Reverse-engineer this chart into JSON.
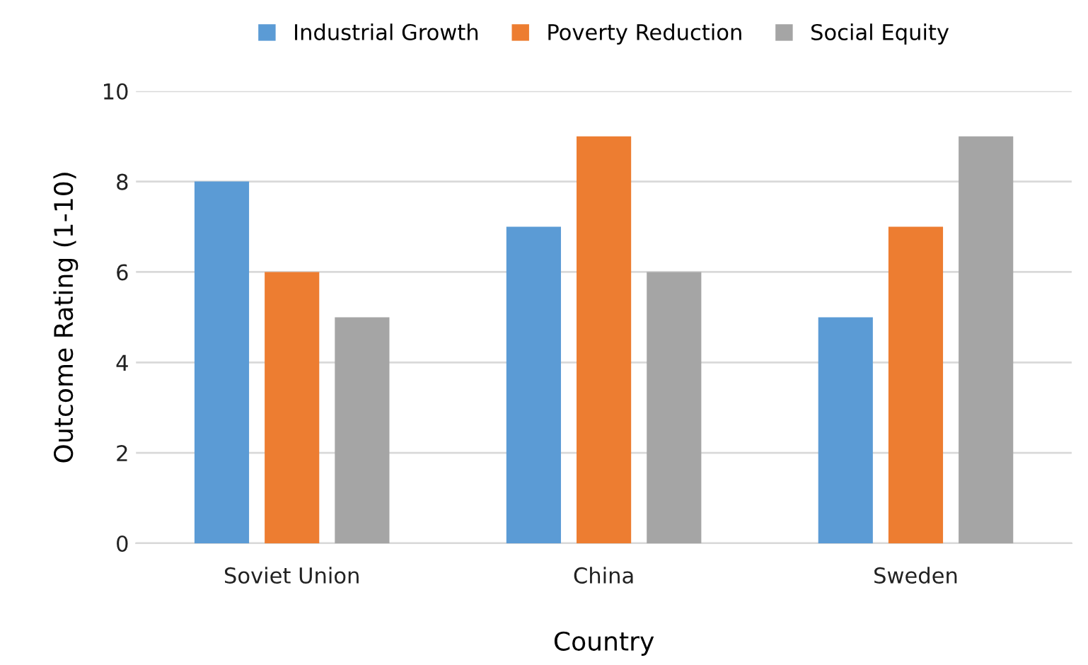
{
  "chart_data": {
    "type": "bar",
    "xlabel": "Country",
    "ylabel": "Outcome Rating (1-10)",
    "categories": [
      "Soviet Union",
      "China",
      "Sweden"
    ],
    "series": [
      {
        "name": "Industrial Growth",
        "color": "#5b9bd5",
        "values": [
          8,
          7,
          5
        ]
      },
      {
        "name": "Poverty Reduction",
        "color": "#ed7d31",
        "values": [
          6,
          9,
          7
        ]
      },
      {
        "name": "Social Equity",
        "color": "#a5a5a5",
        "values": [
          5,
          6,
          9
        ]
      }
    ],
    "ylim": [
      0,
      10
    ],
    "yticks": [
      0,
      2,
      4,
      6,
      8,
      10
    ],
    "grid": "y",
    "legend": "top"
  }
}
